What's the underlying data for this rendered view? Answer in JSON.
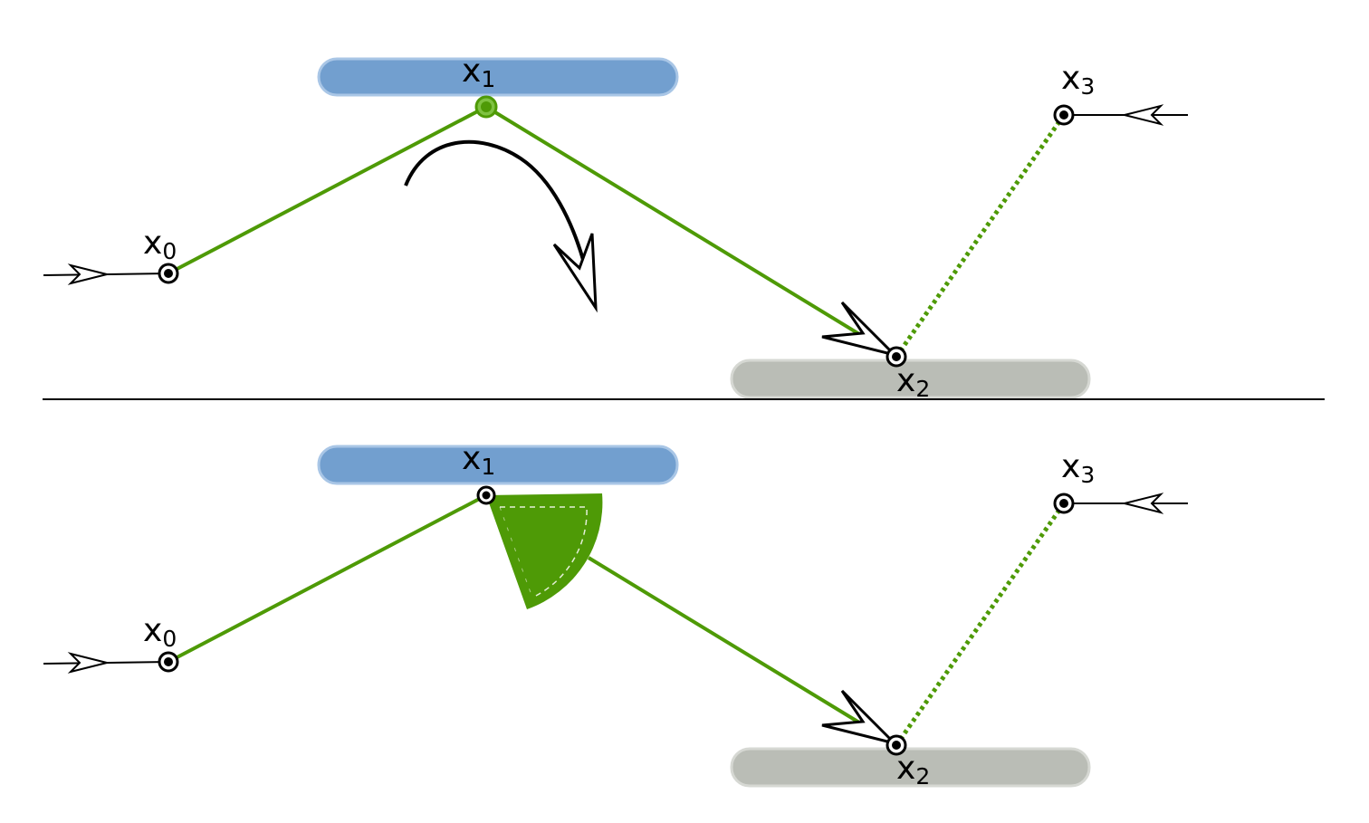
{
  "colors": {
    "path": "#4e9a06",
    "surface_top": "#729fcf",
    "surface_bottom": "#babdb6",
    "ink": "#000000"
  },
  "panels": {
    "top": {
      "x0": {
        "base": "x",
        "sub": "0"
      },
      "x1": {
        "base": "x",
        "sub": "1"
      },
      "x2": {
        "base": "x",
        "sub": "2"
      },
      "x3": {
        "base": "x",
        "sub": "3"
      }
    },
    "bottom": {
      "x0": {
        "base": "x",
        "sub": "0"
      },
      "x1": {
        "base": "x",
        "sub": "1"
      },
      "x2": {
        "base": "x",
        "sub": "2"
      },
      "x3": {
        "base": "x",
        "sub": "3"
      }
    }
  }
}
